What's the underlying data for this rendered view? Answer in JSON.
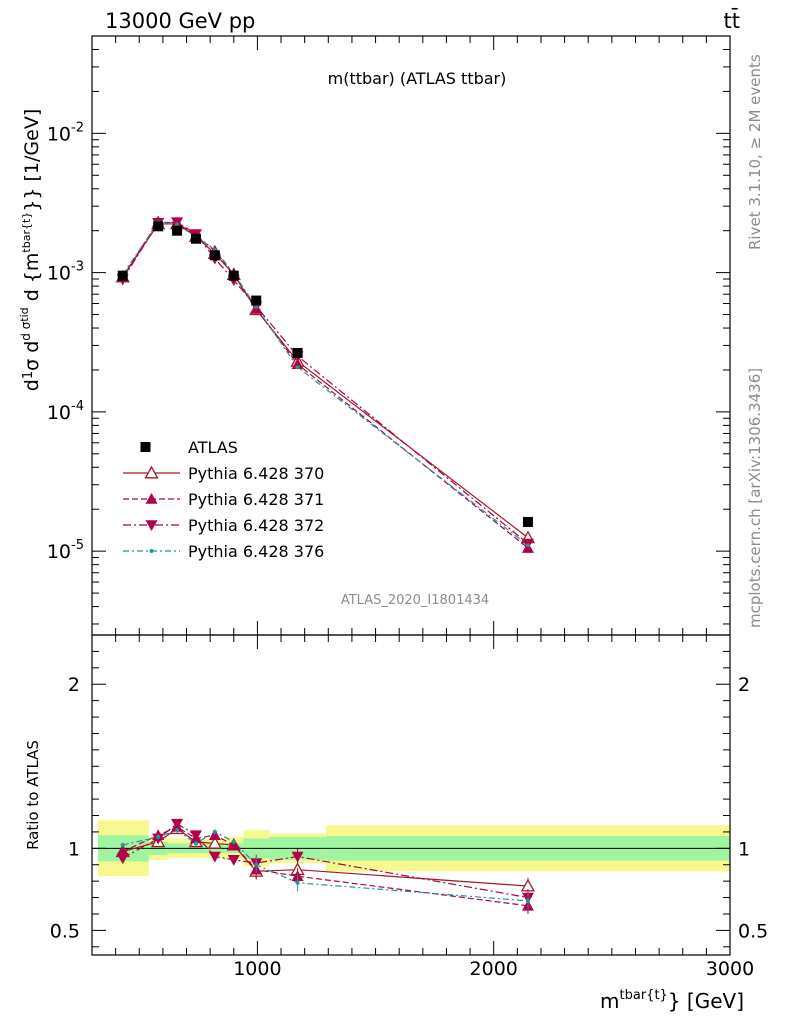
{
  "header": {
    "left": "13000 GeV pp",
    "right": "tt̄"
  },
  "side_texts": {
    "top": "Rivet 3.1.10, ≥ 2M events",
    "bottom": "mcplots.cern.ch [arXiv:1306.3436]"
  },
  "chart_data": {
    "type": "scatter",
    "title": "m(ttbar) (ATLAS ttbar)",
    "watermark": "ATLAS_2020_I1801434",
    "xlabel": "m^{tbar{t}} [GeV]",
    "ylabel": "d¹/σ d dσ^{tid} / d {m^{tbar{t}}} [1/GeV]",
    "ratio_ylabel": "Ratio to ATLAS",
    "xlim": [
      300,
      3000
    ],
    "ylim": [
      2.5e-06,
      0.05
    ],
    "ylog": true,
    "ratio_ylim": [
      0.35,
      2.3
    ],
    "x_ticks": [
      "1000",
      "2000",
      "3000"
    ],
    "y_ticks": [
      "10^{-5}",
      "10^{-4}",
      "10^{-3}",
      "10^{-2}"
    ],
    "ratio_ticks": [
      "0.5",
      "1",
      "2"
    ],
    "legend_position": "middle-left",
    "bins": [
      [
        325,
        540
      ],
      [
        540,
        620
      ],
      [
        620,
        700
      ],
      [
        700,
        780
      ],
      [
        780,
        860
      ],
      [
        860,
        940
      ],
      [
        940,
        1050
      ],
      [
        1050,
        1290
      ],
      [
        1290,
        3000
      ]
    ],
    "x": [
      430,
      580,
      660,
      740,
      820,
      900,
      995,
      1170,
      2145
    ],
    "data": {
      "name": "ATLAS",
      "y": [
        0.00095,
        0.00215,
        0.002,
        0.00175,
        0.00133,
        0.00095,
        0.00063,
        0.000265,
        1.62e-05
      ],
      "band_inner": [
        0.08,
        0.04,
        0.03,
        0.03,
        0.03,
        0.03,
        0.06,
        0.07,
        0.075
      ],
      "band_outer": [
        0.17,
        0.07,
        0.06,
        0.06,
        0.06,
        0.07,
        0.11,
        0.09,
        0.14
      ]
    },
    "series": [
      {
        "name": "Pythia 6.428 370",
        "color": "#a01a24",
        "marker": "triangle-open",
        "dash": "",
        "ratio": [
          0.98,
          1.04,
          1.12,
          1.04,
          1.03,
          1.02,
          0.86,
          0.87,
          0.77
        ]
      },
      {
        "name": "Pythia 6.428 371",
        "color": "#b3004a",
        "marker": "triangle-up",
        "dash": "6,3",
        "ratio": [
          0.98,
          1.08,
          1.13,
          1.06,
          1.08,
          1.02,
          0.87,
          0.83,
          0.65
        ]
      },
      {
        "name": "Pythia 6.428 372",
        "color": "#b3004a",
        "marker": "triangle-down",
        "dash": "8,3,2,3",
        "ratio": [
          0.94,
          1.06,
          1.15,
          1.08,
          0.95,
          0.93,
          0.91,
          0.95,
          0.7
        ]
      },
      {
        "name": "Pythia 6.428 376",
        "color": "#1a9a9a",
        "marker": "dot",
        "dash": "6,3,2,3",
        "ratio": [
          1.02,
          1.07,
          1.11,
          1.03,
          1.1,
          1.04,
          0.9,
          0.79,
          0.68
        ]
      }
    ]
  },
  "colors": {
    "band_inner": "#a0f5a0",
    "band_outer": "#f8f890",
    "data_marker": "#000000"
  }
}
